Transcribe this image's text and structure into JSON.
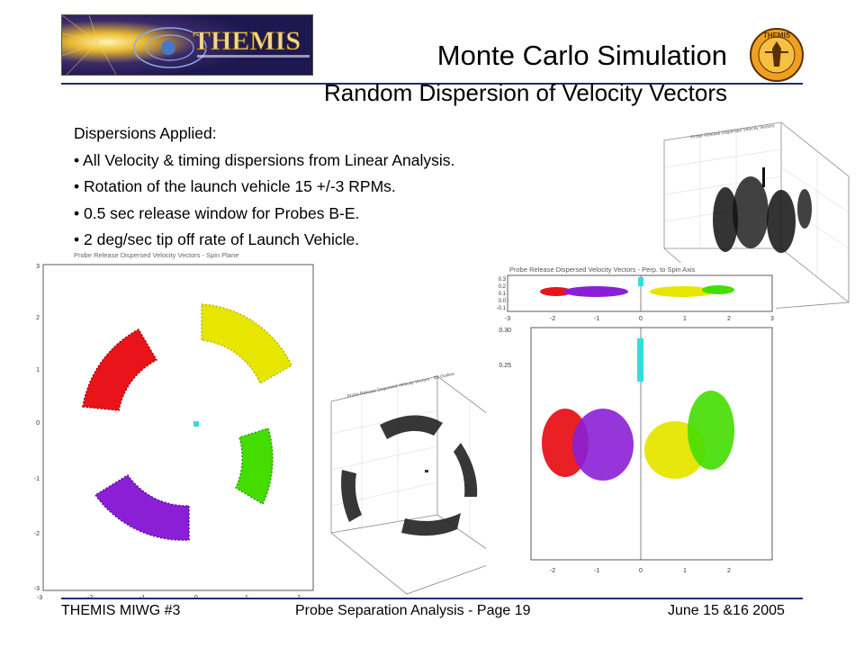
{
  "header": {
    "logo_text": "THEMIS",
    "title": "Monte Carlo Simulation",
    "subtitle": "Random Dispersion of Velocity Vectors",
    "badge_text": "THEMIS"
  },
  "body": {
    "heading": "Dispersions Applied:",
    "bullets": [
      "• All Velocity & timing dispersions from Linear Analysis.",
      "• Rotation of the launch vehicle 15 +/-3 RPMs.",
      "• 0.5 sec release window for Probes B-E.",
      "• 2 deg/sec tip off rate of Launch Vehicle."
    ]
  },
  "figures": {
    "spin_plane": {
      "title": "Probe Release Dispersed Velocity Vectors - Spin Plane",
      "xticks": [
        "-3",
        "-2",
        "-1",
        "0",
        "1",
        "2"
      ],
      "yticks": [
        "3",
        "2",
        "1",
        "0",
        "-1",
        "-2",
        "-3"
      ]
    },
    "perp_top": {
      "title": "Probe Release Dispersed Velocity Vectors - Perp. to Spin Axis",
      "xticks": [
        "-3",
        "-2",
        "-1",
        "0",
        "1",
        "2",
        "3"
      ]
    },
    "perp_main": {
      "yticks": [
        "0.30",
        "0.25"
      ],
      "xticks": [
        "-2",
        "-1",
        "0",
        "1",
        "2"
      ]
    },
    "box3d_top": {
      "title": "Probe Release Dispersed Velocity Vectors"
    },
    "box3d_mid": {
      "title": "Probe Release Dispersed Velocity Vectors - 3D Outline"
    }
  },
  "colors": {
    "rule": "#1f2a7a",
    "red": "#e8141a",
    "yellow": "#e6e600",
    "green": "#44dd00",
    "purple": "#8a1fd6",
    "cyan": "#33dddd"
  },
  "footer": {
    "left": "THEMIS MIWG #3",
    "center": "Probe Separation Analysis - Page 19",
    "right": "June 15 &16 2005"
  }
}
